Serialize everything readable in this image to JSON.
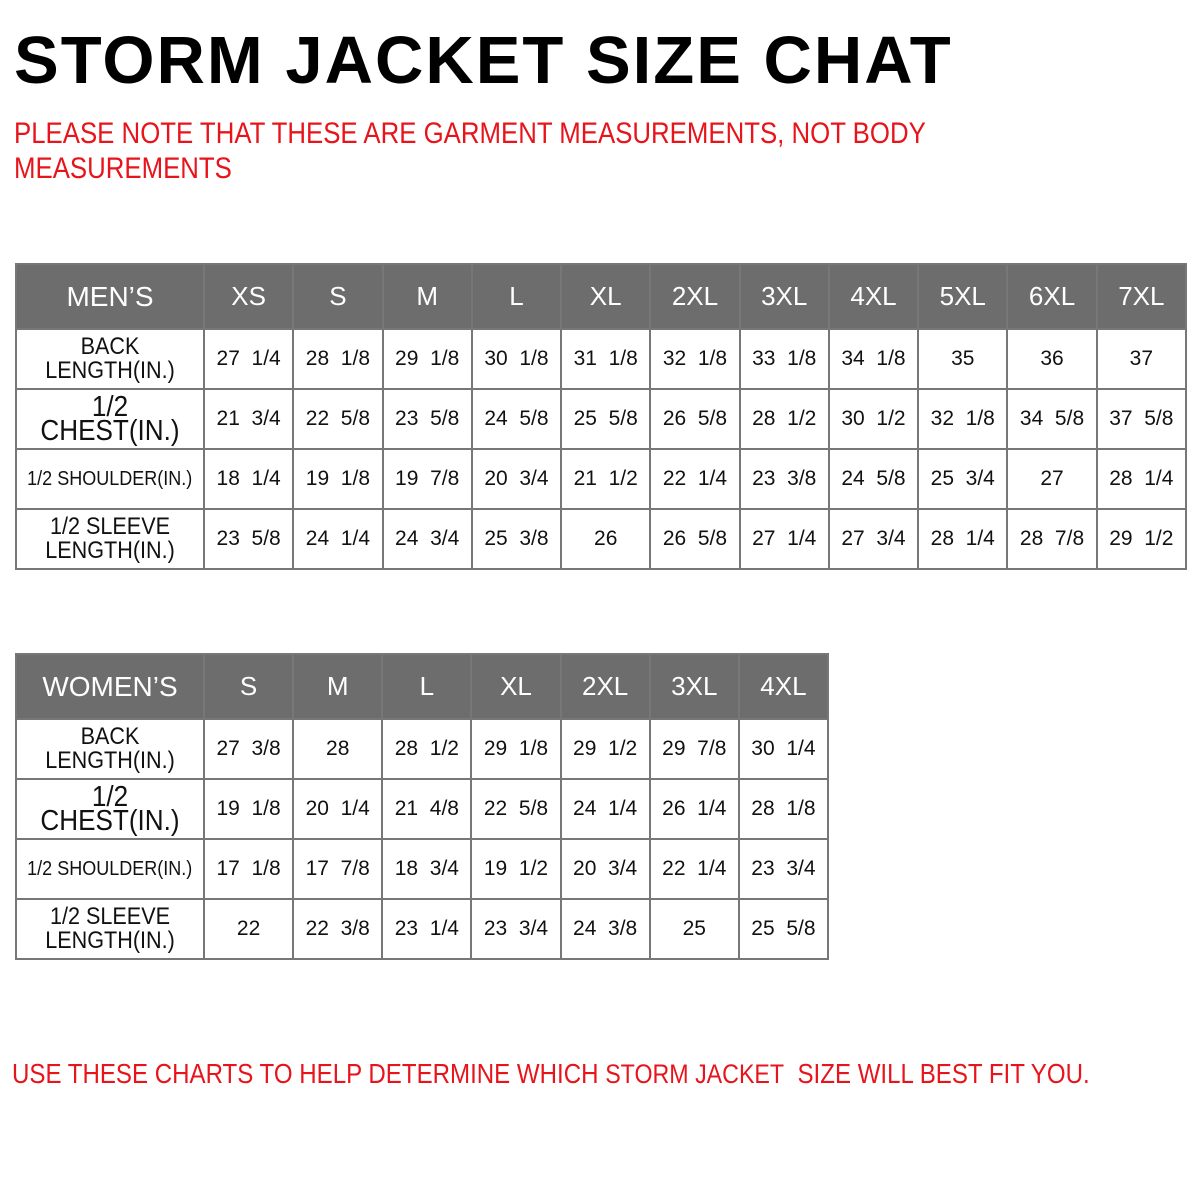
{
  "title": "STORM JACKET SIZE CHAT",
  "note": "PLEASE NOTE THAT THESE ARE GARMENT MEASUREMENTS, NOT BODY MEASUREMENTS",
  "colors": {
    "header_bg": "#6d6d6d",
    "accent_red": "#e8141b"
  },
  "mens": {
    "header": "MEN’S",
    "sizes": [
      "XS",
      "S",
      "M",
      "L",
      "XL",
      "2XL",
      "3XL",
      "4XL",
      "5XL",
      "6XL",
      "7XL"
    ],
    "rows": [
      {
        "label": "BACK LENGTH(IN.)",
        "values": [
          "27  1/4",
          "28  1/8",
          "29  1/8",
          "30  1/8",
          "31  1/8",
          "32  1/8",
          "33  1/8",
          "34  1/8",
          "35",
          "36",
          "37"
        ]
      },
      {
        "label": "1/2  CHEST(IN.)",
        "values": [
          "21  3/4",
          "22  5/8",
          "23  5/8",
          "24  5/8",
          "25  5/8",
          "26  5/8",
          "28  1/2",
          "30  1/2",
          "32  1/8",
          "34  5/8",
          "37  5/8"
        ]
      },
      {
        "label": "1/2  SHOULDER(IN.)",
        "values": [
          "18  1/4",
          "19  1/8",
          "19  7/8",
          "20  3/4",
          "21  1/2",
          "22  1/4",
          "23  3/8",
          "24  5/8",
          "25  3/4",
          "27",
          "28  1/4"
        ]
      },
      {
        "label": "1/2  SLEEVE LENGTH(IN.)",
        "values": [
          "23  5/8",
          "24  1/4",
          "24  3/4",
          "25  3/8",
          "26",
          "26  5/8",
          "27  1/4",
          "27  3/4",
          "28  1/4",
          "28  7/8",
          "29  1/2"
        ]
      }
    ]
  },
  "womens": {
    "header": "WOMEN’S",
    "sizes": [
      "S",
      "M",
      "L",
      "XL",
      "2XL",
      "3XL",
      "4XL"
    ],
    "rows": [
      {
        "label": "BACK LENGTH(IN.)",
        "values": [
          "27  3/8",
          "28",
          "28  1/2",
          "29  1/8",
          "29  1/2",
          "29  7/8",
          "30  1/4"
        ]
      },
      {
        "label": "1/2  CHEST(IN.)",
        "values": [
          "19  1/8",
          "20  1/4",
          "21  4/8",
          "22  5/8",
          "24  1/4",
          "26  1/4",
          "28  1/8"
        ]
      },
      {
        "label": "1/2  SHOULDER(IN.)",
        "values": [
          "17  1/8",
          "17  7/8",
          "18  3/4",
          "19  1/2",
          "20  3/4",
          "22  1/4",
          "23  3/4"
        ]
      },
      {
        "label": "1/2  SLEEVE LENGTH(IN.)",
        "values": [
          "22",
          "22  3/8",
          "23  1/4",
          "23  3/4",
          "24  3/8",
          "25",
          "25  5/8"
        ]
      }
    ]
  },
  "footer": {
    "prefix": "USE THESE CHARTS TO HELP DETERMINE WHICH ",
    "brand": "STORM JACKET",
    "suffix": "  SIZE WILL BEST FIT YOU."
  }
}
